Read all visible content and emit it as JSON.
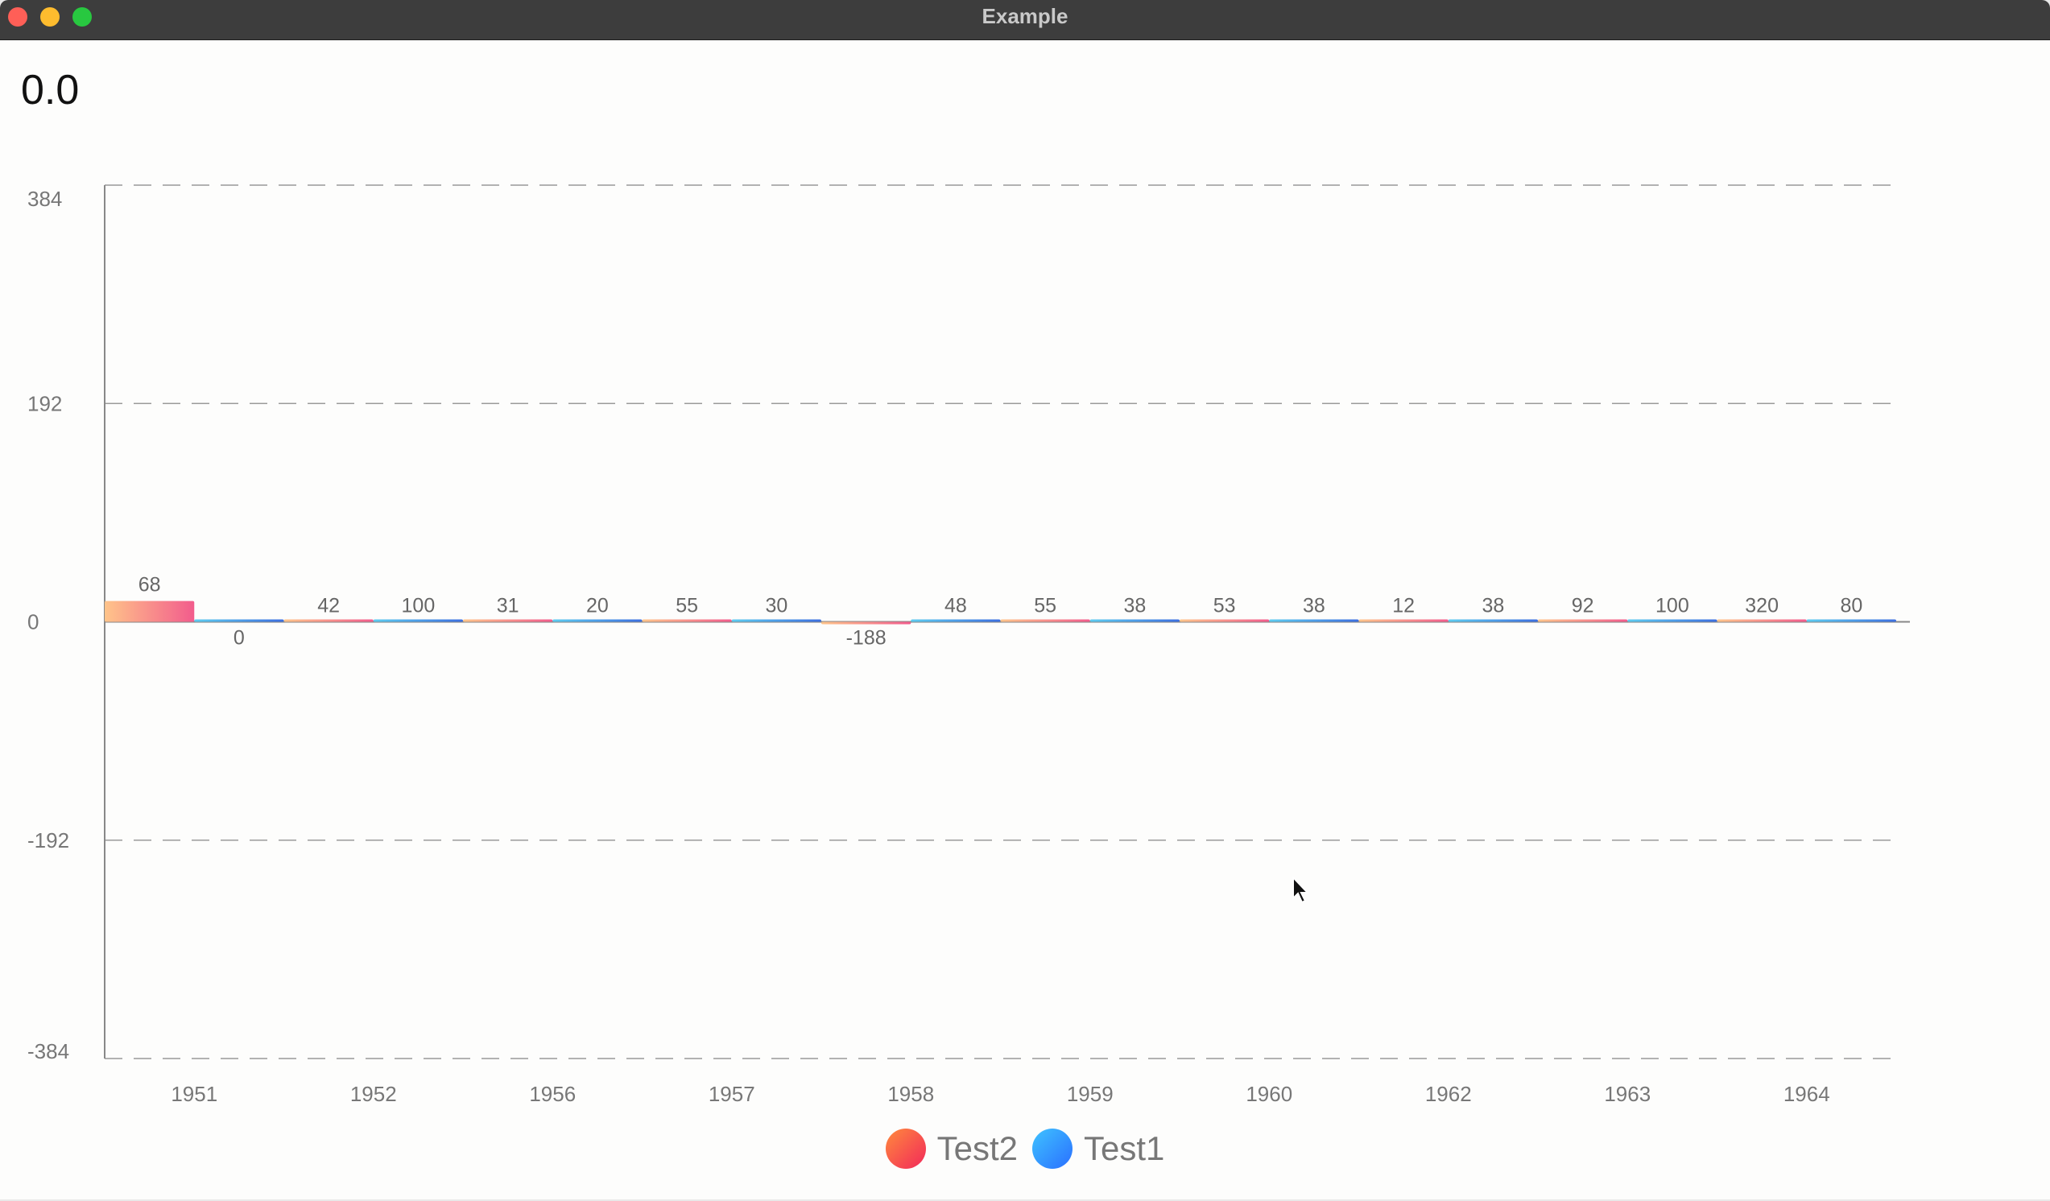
{
  "window": {
    "title": "Example"
  },
  "readout": {
    "value": "0.0"
  },
  "colors": {
    "test2_start": "#ffc48a",
    "test2_end": "#f25c8c",
    "test1_start": "#5ccbf0",
    "test1_end": "#3c6fe0",
    "legend_test2_start": "#ff8a3d",
    "legend_test2_end": "#f2285a",
    "legend_test1_start": "#3fc3ff",
    "legend_test1_end": "#2a6fff",
    "grid": "#9a9a9a",
    "axis": "#888888"
  },
  "legend": {
    "items": [
      {
        "name": "Test2",
        "color_key": "test2"
      },
      {
        "name": "Test1",
        "color_key": "test1"
      }
    ]
  },
  "chart_data": {
    "type": "bar",
    "categories": [
      "1951",
      "1952",
      "1956",
      "1957",
      "1958",
      "1959",
      "1960",
      "1962",
      "1963",
      "1964"
    ],
    "series": [
      {
        "name": "Test2",
        "values": [
          68,
          42,
          31,
          55,
          -188,
          55,
          53,
          12,
          92,
          320
        ]
      },
      {
        "name": "Test1",
        "values": [
          0,
          100,
          20,
          30,
          48,
          38,
          38,
          38,
          100,
          80
        ]
      }
    ],
    "ylim": [
      -384,
      384
    ],
    "yticks": [
      384,
      192,
      0,
      -192,
      -384
    ],
    "grid": true,
    "grid_style": "dashed",
    "legend_position": "bottom-center",
    "data_labels": true
  }
}
